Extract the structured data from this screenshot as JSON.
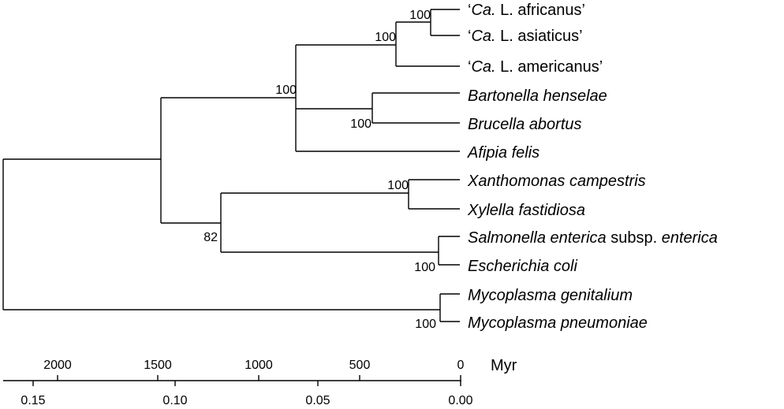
{
  "taxa": [
    {
      "prefix": "‘",
      "italic": "Ca.",
      "rest": " L. africanus’"
    },
    {
      "prefix": "‘",
      "italic": "Ca.",
      "rest": " L. asiaticus’"
    },
    {
      "prefix": "‘",
      "italic": "Ca.",
      "rest": " L. americanus’"
    },
    {
      "prefix": "",
      "italic": "Bartonella henselae",
      "rest": ""
    },
    {
      "prefix": "",
      "italic": "Brucella abortus",
      "rest": ""
    },
    {
      "prefix": "",
      "italic": "Afipia felis",
      "rest": ""
    },
    {
      "prefix": "",
      "italic": "Xanthomonas campestris",
      "rest": ""
    },
    {
      "prefix": "",
      "italic": "Xylella fastidiosa",
      "rest": ""
    },
    {
      "prefix": "",
      "italic": "Salmonella enterica",
      "rest": " subsp. ",
      "italic2": "enterica"
    },
    {
      "prefix": "",
      "italic": "Escherichia coli",
      "rest": ""
    },
    {
      "prefix": "",
      "italic": "Mycoplasma genitalium",
      "rest": ""
    },
    {
      "prefix": "",
      "italic": "Mycoplasma pneumoniae",
      "rest": ""
    }
  ],
  "bootstrap": {
    "africanus_asiaticus": "100",
    "liberibacter": "100",
    "alphaproteobacteria": "100",
    "bartonella_brucella": "100",
    "xanthomonas_xylella": "100",
    "gammaproteobacteria": "82",
    "salmonella_escherichia": "100",
    "mycoplasma": "100"
  },
  "time_axis": {
    "unit": "Myr",
    "ticks": [
      "2000",
      "1500",
      "1000",
      "500",
      "0"
    ]
  },
  "distance_axis": {
    "ticks": [
      "0.15",
      "0.10",
      "0.05",
      "0.00"
    ]
  }
}
